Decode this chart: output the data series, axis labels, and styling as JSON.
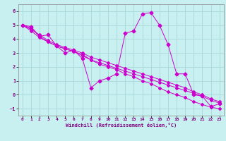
{
  "xlabel": "Windchill (Refroidissement éolien,°C)",
  "xlim": [
    -0.5,
    23.5
  ],
  "ylim": [
    -1.5,
    6.5
  ],
  "xticks": [
    0,
    1,
    2,
    3,
    4,
    5,
    6,
    7,
    8,
    9,
    10,
    11,
    12,
    13,
    14,
    15,
    16,
    17,
    18,
    19,
    20,
    21,
    22,
    23
  ],
  "yticks": [
    -1,
    0,
    1,
    2,
    3,
    4,
    5,
    6
  ],
  "background_color": "#c8f0f0",
  "grid_color": "#a8d8d8",
  "line_color": "#cc00cc",
  "lines": [
    [
      5.0,
      4.9,
      4.2,
      4.3,
      3.5,
      3.0,
      3.2,
      2.6,
      0.5,
      1.0,
      1.2,
      1.5,
      4.4,
      4.6,
      5.8,
      5.9,
      5.0,
      3.6,
      1.5,
      1.5,
      0.0,
      -0.1,
      -0.85,
      -0.65
    ],
    [
      5.0,
      4.6,
      4.1,
      3.8,
      3.5,
      3.3,
      3.1,
      2.9,
      2.5,
      2.2,
      2.0,
      1.8,
      1.5,
      1.3,
      1.0,
      0.8,
      0.5,
      0.2,
      0.0,
      -0.2,
      -0.5,
      -0.7,
      -0.9,
      -1.0
    ],
    [
      5.0,
      4.7,
      4.3,
      3.9,
      3.6,
      3.4,
      3.2,
      3.0,
      2.7,
      2.5,
      2.3,
      2.1,
      1.9,
      1.7,
      1.5,
      1.3,
      1.1,
      0.9,
      0.7,
      0.5,
      0.2,
      0.0,
      -0.3,
      -0.5
    ],
    [
      5.0,
      4.8,
      4.2,
      3.8,
      3.5,
      3.3,
      3.1,
      2.8,
      2.5,
      2.3,
      2.1,
      1.9,
      1.7,
      1.5,
      1.3,
      1.1,
      0.9,
      0.7,
      0.5,
      0.3,
      0.1,
      -0.1,
      -0.4,
      -0.6
    ]
  ]
}
